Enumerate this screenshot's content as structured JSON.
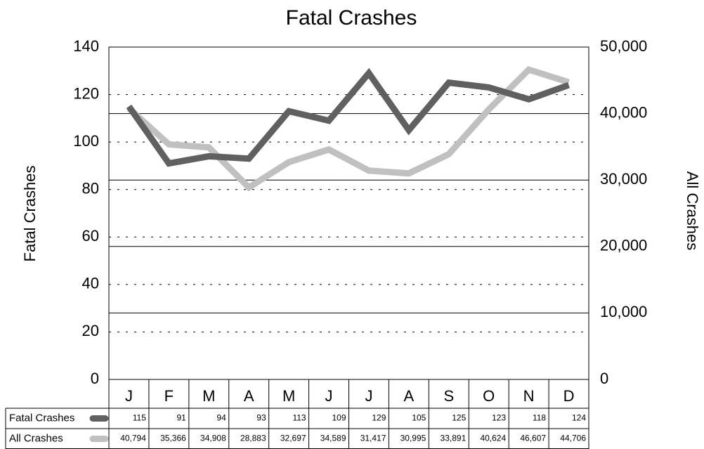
{
  "chart_data": {
    "type": "line",
    "title": "Fatal Crashes",
    "categories": [
      "J",
      "F",
      "M",
      "A",
      "M",
      "J",
      "J",
      "A",
      "S",
      "O",
      "N",
      "D"
    ],
    "ylabel": "Fatal Crashes",
    "y2label": "All Crashes",
    "ylim": [
      0,
      140
    ],
    "yticks": [
      0,
      20,
      40,
      60,
      80,
      100,
      120,
      140
    ],
    "y2lim": [
      0,
      50000
    ],
    "y2ticks": [
      0,
      {
        "value": 10000,
        "label": "10,000"
      },
      {
        "value": 20000,
        "label": "20,000"
      },
      {
        "value": 30000,
        "label": "30,000"
      },
      {
        "value": 40000,
        "label": "40,000"
      },
      {
        "value": 50000,
        "label": "50,000"
      }
    ],
    "grid": true,
    "data_table": true,
    "series": [
      {
        "name": "Fatal Crashes",
        "color": "#606060",
        "values": [
          115,
          91,
          94,
          93,
          113,
          109,
          129,
          105,
          125,
          123,
          118,
          124
        ]
      },
      {
        "name": "All Crashes",
        "color": "#c0c0c0",
        "axis": "y2",
        "values": [
          40794,
          35366,
          34908,
          28883,
          32697,
          34589,
          31417,
          30995,
          33891,
          40624,
          46607,
          44706
        ],
        "value_labels": [
          "40,794",
          "35,366",
          "34,908",
          "28,883",
          "32,697",
          "34,589",
          "31,417",
          "30,995",
          "33,891",
          "40,624",
          "46,607",
          "44,706"
        ]
      }
    ]
  }
}
